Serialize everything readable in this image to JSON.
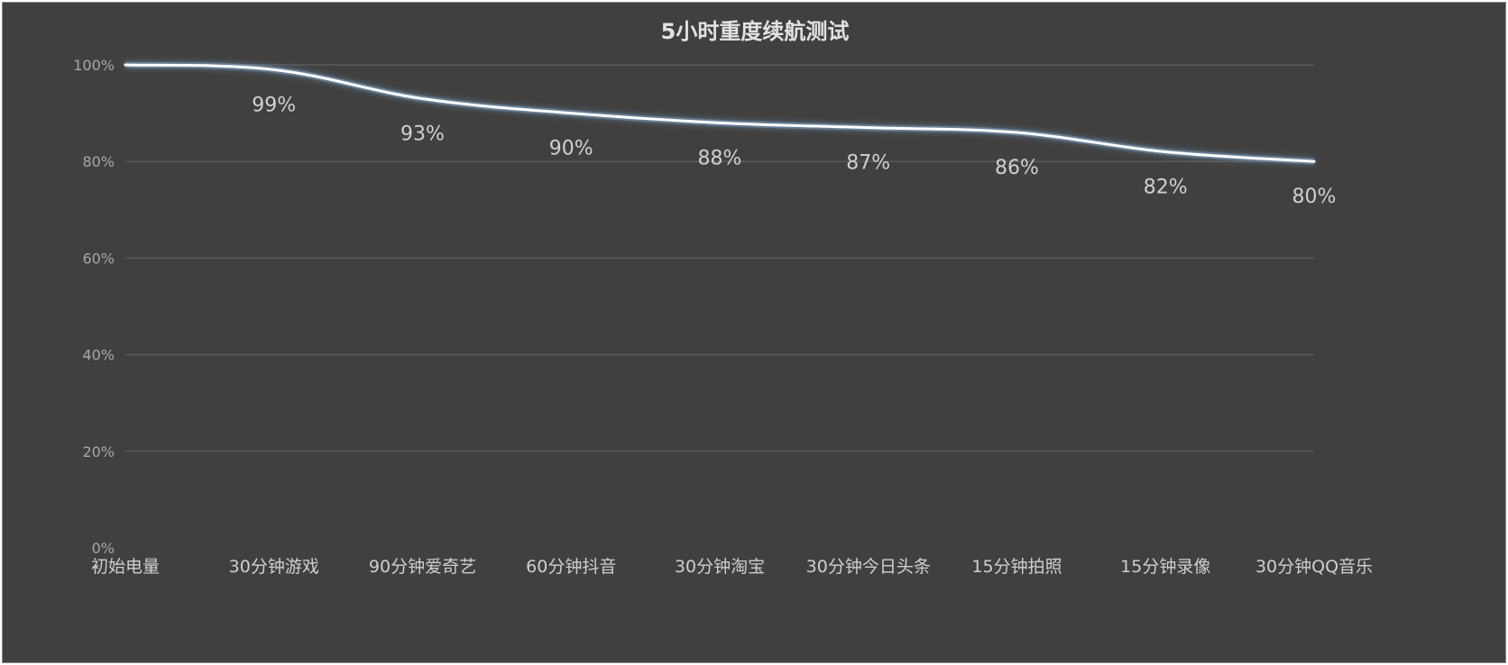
{
  "chart_data": {
    "type": "line",
    "title": "5小时重度续航测试",
    "categories": [
      "初始电量",
      "30分钟游戏",
      "90分钟爱奇艺",
      "60分钟抖音",
      "30分钟淘宝",
      "30分钟今日头条",
      "15分钟拍照",
      "15分钟录像",
      "30分钟QQ音乐"
    ],
    "series": [
      {
        "values": [
          100,
          99,
          93,
          90,
          88,
          87,
          86,
          82,
          80
        ],
        "color": "#ffffff"
      }
    ],
    "data_labels": [
      "",
      "99%",
      "93%",
      "90%",
      "88%",
      "87%",
      "86%",
      "82%",
      "80%"
    ],
    "yticks": [
      0,
      20,
      40,
      60,
      80,
      100
    ],
    "ytick_labels": [
      "0%",
      "20%",
      "40%",
      "60%",
      "80%",
      "100%"
    ],
    "ylim": [
      0,
      100
    ],
    "xlabel": "",
    "ylabel": "",
    "grid": true,
    "legend": "none",
    "colors": {
      "background": "#404040",
      "line": "#ffffff",
      "line_glow": "#7fa6cc"
    }
  }
}
